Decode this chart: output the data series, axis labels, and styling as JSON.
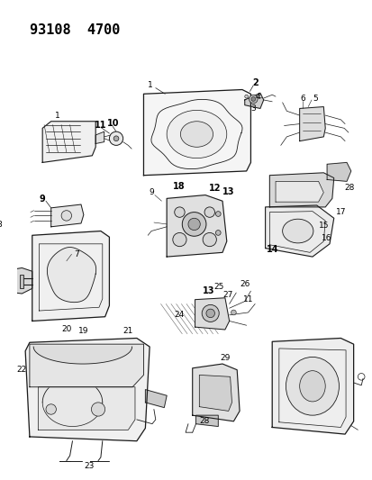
{
  "title": "93108  4700",
  "bg_color": "#ffffff",
  "line_color": "#1a1a1a",
  "label_color": "#000000",
  "title_fontsize": 11,
  "fig_width": 4.14,
  "fig_height": 5.33,
  "dpi": 100
}
